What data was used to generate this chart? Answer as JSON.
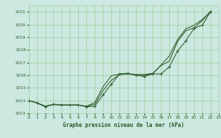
{
  "title": "Graphe pression niveau de la mer (hPa)",
  "bg_color": "#cce8e0",
  "grid_color": "#99cc99",
  "line_color": "#2d5c2d",
  "xlim": [
    0,
    23
  ],
  "ylim": [
    1013.0,
    1021.5
  ],
  "yticks": [
    1013,
    1014,
    1015,
    1016,
    1017,
    1018,
    1019,
    1020,
    1021
  ],
  "xticks": [
    0,
    1,
    2,
    3,
    4,
    5,
    6,
    7,
    8,
    9,
    10,
    11,
    12,
    13,
    14,
    15,
    16,
    17,
    18,
    19,
    20,
    21,
    22,
    23
  ],
  "hours": [
    0,
    1,
    2,
    3,
    4,
    5,
    6,
    7,
    8,
    9,
    10,
    11,
    12,
    13,
    14,
    15,
    16,
    17,
    18,
    19,
    20,
    21,
    22
  ],
  "line_marked": [
    1014.0,
    1013.8,
    1013.5,
    1013.7,
    1013.65,
    1013.65,
    1013.65,
    1013.5,
    1013.55,
    1014.45,
    1015.3,
    1016.1,
    1016.15,
    1016.0,
    1015.9,
    1016.1,
    1016.1,
    1016.65,
    1017.9,
    1018.7,
    1019.7,
    1019.95,
    1021.0
  ],
  "line_upper": [
    1014.0,
    1013.8,
    1013.55,
    1013.68,
    1013.63,
    1013.63,
    1013.63,
    1013.55,
    1013.7,
    1014.8,
    1015.6,
    1016.05,
    1016.1,
    1016.05,
    1016.05,
    1016.15,
    1016.75,
    1017.1,
    1018.65,
    1019.5,
    1019.75,
    1020.3,
    1021.05
  ],
  "line_lower": [
    1014.0,
    1013.82,
    1013.55,
    1013.7,
    1013.64,
    1013.64,
    1013.64,
    1013.54,
    1013.85,
    1015.1,
    1015.95,
    1016.1,
    1016.1,
    1016.0,
    1016.0,
    1016.1,
    1016.8,
    1017.5,
    1018.8,
    1019.65,
    1019.95,
    1020.4,
    1021.02
  ]
}
